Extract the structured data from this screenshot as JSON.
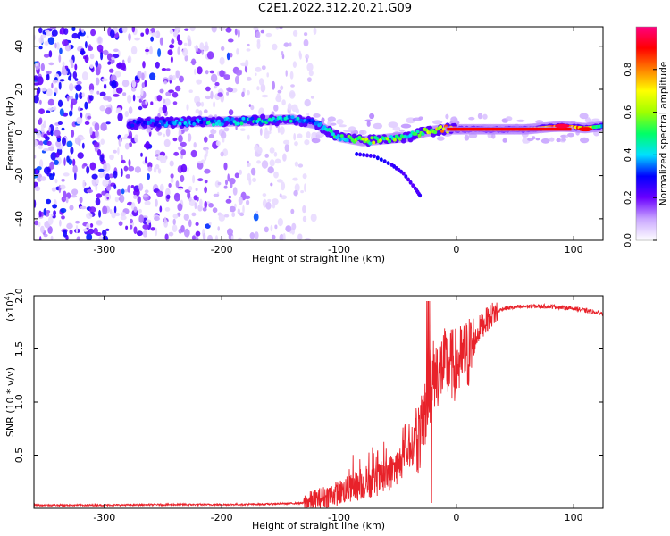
{
  "title": "C2E1.2022.312.20.21.G09",
  "chart_data": [
    {
      "type": "heatmap",
      "xlabel": "Height of straight line (km)",
      "ylabel": "Frequency (Hz)",
      "xlim": [
        -360,
        125
      ],
      "ylim": [
        -50,
        49
      ],
      "xticks": [
        -300,
        -200,
        -100,
        0,
        100
      ],
      "yticks": [
        -40,
        -20,
        0,
        20,
        40
      ],
      "colorbar": {
        "label": "Normalized spectral amplitude",
        "ticks": [
          "0.0",
          "0.2",
          "0.4",
          "0.6",
          "0.8"
        ],
        "range": [
          0,
          1
        ],
        "colormap": [
          "#ffffff",
          "#c9a6ff",
          "#6a00ff",
          "#0000ff",
          "#00e0ff",
          "#00ff66",
          "#a0ff00",
          "#ffff00",
          "#ff8000",
          "#ff0000",
          "#ff0080"
        ]
      },
      "ridge": [
        {
          "x": -280,
          "y": 4,
          "amp": 0.3
        },
        {
          "x": -250,
          "y": 4.5,
          "amp": 0.35
        },
        {
          "x": -220,
          "y": 5,
          "amp": 0.4
        },
        {
          "x": -200,
          "y": 5,
          "amp": 0.45
        },
        {
          "x": -170,
          "y": 5.5,
          "amp": 0.45
        },
        {
          "x": -140,
          "y": 6,
          "amp": 0.45
        },
        {
          "x": -120,
          "y": 4,
          "amp": 0.4
        },
        {
          "x": -100,
          "y": -2,
          "amp": 0.5
        },
        {
          "x": -80,
          "y": -4,
          "amp": 0.6
        },
        {
          "x": -60,
          "y": -3,
          "amp": 0.6
        },
        {
          "x": -40,
          "y": -2,
          "amp": 0.5
        },
        {
          "x": -30,
          "y": 0,
          "amp": 0.55
        },
        {
          "x": -10,
          "y": 1.5,
          "amp": 0.8
        },
        {
          "x": 20,
          "y": 1.5,
          "amp": 0.95
        },
        {
          "x": 60,
          "y": 1.5,
          "amp": 0.95
        },
        {
          "x": 90,
          "y": 3,
          "amp": 0.9
        },
        {
          "x": 110,
          "y": 2,
          "amp": 0.8
        },
        {
          "x": 125,
          "y": 3,
          "amp": 0.5
        }
      ],
      "secondary_trace": [
        {
          "x": -85,
          "y": -10
        },
        {
          "x": -70,
          "y": -11
        },
        {
          "x": -55,
          "y": -15
        },
        {
          "x": -45,
          "y": -19
        },
        {
          "x": -35,
          "y": -26
        },
        {
          "x": -30,
          "y": -30
        }
      ]
    },
    {
      "type": "line",
      "xlabel": "Height of straight line (km)",
      "ylabel": "SNR (10 * v/v)",
      "scale_label": "(x10",
      "scale_exponent": "4",
      "scale_suffix": ")",
      "xlim": [
        -360,
        125
      ],
      "ylim": [
        0,
        2.0
      ],
      "xticks": [
        -300,
        -200,
        -100,
        0,
        100
      ],
      "yticks": [
        "0.5",
        "1.0",
        "1.5",
        "2.0"
      ],
      "color": "#e8222a",
      "series": [
        {
          "x": [
            -360,
            -300,
            -250,
            -200,
            -160,
            -130,
            -120,
            -100,
            -80,
            -60,
            -50,
            -40,
            -30,
            -25,
            -20,
            -15,
            -10,
            -5,
            0,
            5,
            10,
            15,
            20,
            30,
            40,
            60,
            80,
            100,
            110,
            125
          ],
          "values": [
            0.03,
            0.03,
            0.035,
            0.035,
            0.04,
            0.05,
            0.08,
            0.15,
            0.22,
            0.3,
            0.4,
            0.55,
            0.7,
            1.0,
            1.25,
            1.3,
            1.35,
            1.35,
            1.35,
            1.4,
            1.45,
            1.55,
            1.7,
            1.82,
            1.88,
            1.9,
            1.9,
            1.88,
            1.86,
            1.83
          ]
        }
      ]
    }
  ]
}
